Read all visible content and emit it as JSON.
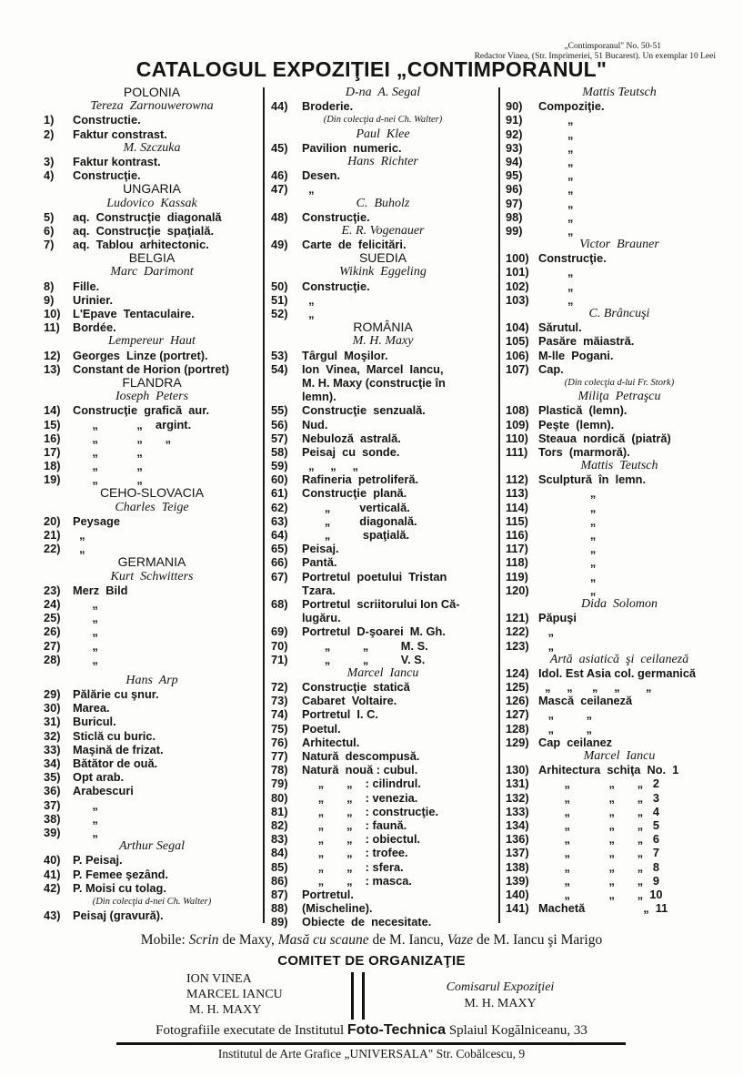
{
  "masthead": {
    "line1": "„Contimporanul\" No. 50-51",
    "line2": "Redactor Vinea, (Str. Imprimeriei, 51 Bucarest). Un exemplar 10 Leei"
  },
  "title": "CATALOGUL EXPOZIŢIEI „CONTIMPORANUL\"",
  "columns": [
    {
      "lines": [
        {
          "t": "h",
          "text": "POLONIA"
        },
        {
          "t": "a",
          "text": "Tereza  Zarnouwerowna"
        },
        {
          "t": "i",
          "num": "1)",
          "text": "Constructie."
        },
        {
          "t": "i",
          "num": "2)",
          "text": "Faktur constrast."
        },
        {
          "t": "a",
          "text": "M. Szczuka"
        },
        {
          "t": "i",
          "num": "3)",
          "text": "Faktur kontrast."
        },
        {
          "t": "i",
          "num": "4)",
          "text": "Construcţie."
        },
        {
          "t": "h",
          "text": "UNGARIA"
        },
        {
          "t": "a",
          "text": "Ludovico  Kassak"
        },
        {
          "t": "i",
          "num": "5)",
          "text": "aq.  Construcţie  diagonală"
        },
        {
          "t": "i",
          "num": "6)",
          "text": "aq.  Construcţie  spaţială."
        },
        {
          "t": "i",
          "num": "7)",
          "text": "aq.  Tablou  arhitectonic."
        },
        {
          "t": "h",
          "text": "BELGIA"
        },
        {
          "t": "a",
          "text": "Marc  Darimont"
        },
        {
          "t": "i",
          "num": "8)",
          "text": "Fille."
        },
        {
          "t": "i",
          "num": "9)",
          "text": "Urinier."
        },
        {
          "t": "i",
          "num": "10)",
          "text": "L'Epave  Tentaculaire."
        },
        {
          "t": "i",
          "num": "11)",
          "text": "Bordée."
        },
        {
          "t": "a",
          "text": "Lempereur  Haut"
        },
        {
          "t": "i",
          "num": "12)",
          "text": "Georges  Linze (portret)."
        },
        {
          "t": "i",
          "num": "13)",
          "text": "Constant de Horion (portret)"
        },
        {
          "t": "h",
          "text": "FLANDRA"
        },
        {
          "t": "a",
          "text": "Ioseph  Peters"
        },
        {
          "t": "i",
          "num": "14)",
          "text": "Construcţie  grafică  aur."
        },
        {
          "t": "i",
          "num": "15)",
          "text": "      „            „    argint."
        },
        {
          "t": "i",
          "num": "16)",
          "text": "      „            „       „"
        },
        {
          "t": "i",
          "num": "17)",
          "text": "      „            „"
        },
        {
          "t": "i",
          "num": "18)",
          "text": "      „            „"
        },
        {
          "t": "i",
          "num": "19)",
          "text": "      „            „"
        },
        {
          "t": "h",
          "text": "CEHO-SLOVACIA"
        },
        {
          "t": "a",
          "text": "Charles  Teige"
        },
        {
          "t": "i",
          "num": "20)",
          "text": "Peysage"
        },
        {
          "t": "i",
          "num": "21)",
          "text": "  „"
        },
        {
          "t": "i",
          "num": "22)",
          "text": "  „"
        },
        {
          "t": "h",
          "text": "GERMANIA"
        },
        {
          "t": "a",
          "text": "Kurt  Schwitters"
        },
        {
          "t": "i",
          "num": "23)",
          "text": "Merz  Bild"
        },
        {
          "t": "i",
          "num": "24)",
          "text": "      „"
        },
        {
          "t": "i",
          "num": "25)",
          "text": "      „"
        },
        {
          "t": "i",
          "num": "26)",
          "text": "      „"
        },
        {
          "t": "i",
          "num": "27)",
          "text": "      „"
        },
        {
          "t": "i",
          "num": "28)",
          "text": "      „"
        },
        {
          "t": "a",
          "text": "Hans  Arp"
        },
        {
          "t": "i",
          "num": "29)",
          "text": "Pălărie cu şnur."
        },
        {
          "t": "i",
          "num": "30)",
          "text": "Marea."
        },
        {
          "t": "i",
          "num": "31)",
          "text": "Buricul."
        },
        {
          "t": "i",
          "num": "32)",
          "text": "Sticlă cu buric."
        },
        {
          "t": "i",
          "num": "33)",
          "text": "Maşină de frizat."
        },
        {
          "t": "i",
          "num": "34)",
          "text": "Bătător de ouă."
        },
        {
          "t": "i",
          "num": "35)",
          "text": "Opt arab."
        },
        {
          "t": "i",
          "num": "36)",
          "text": "Arabescuri"
        },
        {
          "t": "i",
          "num": "37)",
          "text": "      „"
        },
        {
          "t": "i",
          "num": "38)",
          "text": "      „"
        },
        {
          "t": "i",
          "num": "39)",
          "text": "      „"
        },
        {
          "t": "a",
          "text": "Arthur Segal"
        },
        {
          "t": "i",
          "num": "40)",
          "text": "P. Peisaj."
        },
        {
          "t": "i",
          "num": "41)",
          "text": "P. Femee şezând."
        },
        {
          "t": "i",
          "num": "42)",
          "text": "P. Moisi cu tolag."
        },
        {
          "t": "n",
          "text": "(Din colecţia d-nei Ch. Walter)"
        },
        {
          "t": "i",
          "num": "43)",
          "text": "Peisaj (gravură)."
        }
      ]
    },
    {
      "lines": [
        {
          "t": "a",
          "text": "D-na  A. Segal"
        },
        {
          "t": "i",
          "num": "44)",
          "text": "Broderie."
        },
        {
          "t": "n",
          "text": "(Din colecţia d-nei Ch. Walter)"
        },
        {
          "t": "a",
          "text": "Paul  Klee"
        },
        {
          "t": "i",
          "num": "45)",
          "text": "Pavilion  numeric."
        },
        {
          "t": "a",
          "text": "Hans  Richter"
        },
        {
          "t": "i",
          "num": "46)",
          "text": "Desen."
        },
        {
          "t": "i",
          "num": "47)",
          "text": "  „"
        },
        {
          "t": "a",
          "text": "C.  Buholz"
        },
        {
          "t": "i",
          "num": "48)",
          "text": "Construcţie."
        },
        {
          "t": "a",
          "text": "E. R. Vogenauer"
        },
        {
          "t": "i",
          "num": "49)",
          "text": "Carte  de  felicitări."
        },
        {
          "t": "h",
          "text": "SUEDIA"
        },
        {
          "t": "a",
          "text": "Wikink  Eggeling"
        },
        {
          "t": "i",
          "num": "50)",
          "text": "Construcţie."
        },
        {
          "t": "i",
          "num": "51)",
          "text": "  „"
        },
        {
          "t": "i",
          "num": "52)",
          "text": "  „"
        },
        {
          "t": "h",
          "text": "ROMÂNIA"
        },
        {
          "t": "a",
          "text": "M. H. Maxy"
        },
        {
          "t": "i",
          "num": "53)",
          "text": "Târgul  Moşilor."
        },
        {
          "t": "i",
          "num": "54)",
          "text": "Ion  Vinea,  Marcel  Iancu,"
        },
        {
          "t": "c",
          "text": "M. H. Maxy (construcţie în"
        },
        {
          "t": "c",
          "text": "lemn)."
        },
        {
          "t": "i",
          "num": "55)",
          "text": "Construcţie  senzuală."
        },
        {
          "t": "i",
          "num": "56)",
          "text": "Nud."
        },
        {
          "t": "i",
          "num": "57)",
          "text": "Nebuloză  astrală."
        },
        {
          "t": "i",
          "num": "58)",
          "text": "Peisaj  cu  sonde."
        },
        {
          "t": "i",
          "num": "59)",
          "text": "  „     „     „"
        },
        {
          "t": "i",
          "num": "60)",
          "text": "Rafineria  petroliferă."
        },
        {
          "t": "i",
          "num": "61)",
          "text": "Construcţie  plană."
        },
        {
          "t": "i",
          "num": "62)",
          "text": "       „         verticală."
        },
        {
          "t": "i",
          "num": "63)",
          "text": "       „         diagonală."
        },
        {
          "t": "i",
          "num": "64)",
          "text": "       „          spaţială."
        },
        {
          "t": "i",
          "num": "65)",
          "text": "Peisaj."
        },
        {
          "t": "i",
          "num": "66)",
          "text": "Pantă."
        },
        {
          "t": "i",
          "num": "67)",
          "text": "Portretul  poetului  Tristan"
        },
        {
          "t": "c",
          "text": "Tzara."
        },
        {
          "t": "i",
          "num": "68)",
          "text": "Portretul  scriitorului Ion Că-"
        },
        {
          "t": "c",
          "text": "lugăru."
        },
        {
          "t": "i",
          "num": "69)",
          "text": "Portretul  D-şoarei  M. Gh."
        },
        {
          "t": "i",
          "num": "70)",
          "text": "       „          „          M. S."
        },
        {
          "t": "i",
          "num": "71)",
          "text": "       „          „          V. S."
        },
        {
          "t": "a",
          "text": "Marcel  Iancu"
        },
        {
          "t": "i",
          "num": "72)",
          "text": "Construcţie  statică"
        },
        {
          "t": "i",
          "num": "73)",
          "text": "Cabaret  Voltaire."
        },
        {
          "t": "i",
          "num": "74)",
          "text": "Portretul  I. C."
        },
        {
          "t": "i",
          "num": "75)",
          "text": "Poetul."
        },
        {
          "t": "i",
          "num": "76)",
          "text": "Arhitectul."
        },
        {
          "t": "i",
          "num": "77)",
          "text": "Natură  descompusă."
        },
        {
          "t": "i",
          "num": "78)",
          "text": "Natură  nouă : cubul."
        },
        {
          "t": "i",
          "num": "79)",
          "text": "     „       „    : cilindrul."
        },
        {
          "t": "i",
          "num": "80)",
          "text": "     „       „    : venezia."
        },
        {
          "t": "i",
          "num": "81)",
          "text": "     „       „    : construcţie."
        },
        {
          "t": "i",
          "num": "82)",
          "text": "     „       „    : faună."
        },
        {
          "t": "i",
          "num": "83)",
          "text": "     „       „    : obiectul."
        },
        {
          "t": "i",
          "num": "84)",
          "text": "     „       „    : trofee."
        },
        {
          "t": "i",
          "num": "85)",
          "text": "     „       „    : sfera."
        },
        {
          "t": "i",
          "num": "86)",
          "text": "     „       „    : masca."
        },
        {
          "t": "i",
          "num": "87)",
          "text": "Portretul."
        },
        {
          "t": "i",
          "num": "88)",
          "text": "(Mischeline)."
        },
        {
          "t": "i",
          "num": "89)",
          "text": "Obiecte  de  necesitate."
        }
      ]
    },
    {
      "lines": [
        {
          "t": "a",
          "text": "Mattis Teutsch"
        },
        {
          "t": "i",
          "num": "90)",
          "text": "Compoziţie."
        },
        {
          "t": "i",
          "num": "91)",
          "text": "         „"
        },
        {
          "t": "i",
          "num": "92)",
          "text": "         „"
        },
        {
          "t": "i",
          "num": "93)",
          "text": "         „"
        },
        {
          "t": "i",
          "num": "94)",
          "text": "         „"
        },
        {
          "t": "i",
          "num": "95)",
          "text": "         „"
        },
        {
          "t": "i",
          "num": "96)",
          "text": "         „"
        },
        {
          "t": "i",
          "num": "97)",
          "text": "         „"
        },
        {
          "t": "i",
          "num": "98)",
          "text": "         „"
        },
        {
          "t": "i",
          "num": "99)",
          "text": "         „"
        },
        {
          "t": "a",
          "text": "Victor  Brauner"
        },
        {
          "t": "i",
          "num": "100)",
          "text": "Construcţie."
        },
        {
          "t": "i",
          "num": "101)",
          "text": "         „"
        },
        {
          "t": "i",
          "num": "102)",
          "text": "         „"
        },
        {
          "t": "i",
          "num": "103)",
          "text": "         „"
        },
        {
          "t": "a",
          "text": "C. Brâncuşi"
        },
        {
          "t": "i",
          "num": "104)",
          "text": "Sărutul."
        },
        {
          "t": "i",
          "num": "105)",
          "text": "Pasăre  măiastră."
        },
        {
          "t": "i",
          "num": "106)",
          "text": "M-lle  Pogani."
        },
        {
          "t": "i",
          "num": "107)",
          "text": "Cap."
        },
        {
          "t": "n",
          "text": "(Din colecţia d-lui Fr. Stork)"
        },
        {
          "t": "a",
          "text": "Miliţa  Petraşcu"
        },
        {
          "t": "i",
          "num": "108)",
          "text": "Plastică  (lemn)."
        },
        {
          "t": "i",
          "num": "109)",
          "text": "Peşte  (lemn)."
        },
        {
          "t": "i",
          "num": "110)",
          "text": "Steaua  nordică  (piatră)"
        },
        {
          "t": "i",
          "num": "111)",
          "text": "Tors  (marmoră)."
        },
        {
          "t": "a",
          "text": "Mattis  Teutsch"
        },
        {
          "t": "i",
          "num": "112)",
          "text": "Sculptură  în  lemn."
        },
        {
          "t": "i",
          "num": "113)",
          "text": "                „"
        },
        {
          "t": "i",
          "num": "114)",
          "text": "                „"
        },
        {
          "t": "i",
          "num": "115)",
          "text": "                „"
        },
        {
          "t": "i",
          "num": "116)",
          "text": "                „"
        },
        {
          "t": "i",
          "num": "117)",
          "text": "                „"
        },
        {
          "t": "i",
          "num": "118)",
          "text": "                „"
        },
        {
          "t": "i",
          "num": "119)",
          "text": "                „"
        },
        {
          "t": "i",
          "num": "120)",
          "text": "                „"
        },
        {
          "t": "a",
          "text": "Dida  Solomon"
        },
        {
          "t": "i",
          "num": "121)",
          "text": "Păpuşi"
        },
        {
          "t": "i",
          "num": "122)",
          "text": "   „"
        },
        {
          "t": "i",
          "num": "123)",
          "text": "   „"
        },
        {
          "t": "a",
          "text": "Artă  asiatică  şi  ceilaneză"
        },
        {
          "t": "i",
          "num": "124)",
          "text": "Idol. Est Asia col. germanică"
        },
        {
          "t": "i",
          "num": "125)",
          "text": "  „     „      „     „        „"
        },
        {
          "t": "i",
          "num": "126)",
          "text": "Mască  ceilaneză"
        },
        {
          "t": "i",
          "num": "127)",
          "text": "   „          „"
        },
        {
          "t": "i",
          "num": "128)",
          "text": "   „          „"
        },
        {
          "t": "i",
          "num": "129)",
          "text": "Cap  ceilanez"
        },
        {
          "t": "a",
          "text": "Marcel  Iancu"
        },
        {
          "t": "i",
          "num": "130)",
          "text": "Arhitectura  schiţa  No.  1"
        },
        {
          "t": "i",
          "num": "131)",
          "text": "        „            „       „   2"
        },
        {
          "t": "i",
          "num": "132)",
          "text": "        „            „       „   3"
        },
        {
          "t": "i",
          "num": "133)",
          "text": "        „            „       „   4"
        },
        {
          "t": "i",
          "num": "134)",
          "text": "        „            „       „   5"
        },
        {
          "t": "i",
          "num": "136)",
          "text": "        „            „       „   6"
        },
        {
          "t": "i",
          "num": "137)",
          "text": "        „            „       „   7"
        },
        {
          "t": "i",
          "num": "138)",
          "text": "        „            „       „   8"
        },
        {
          "t": "i",
          "num": "139)",
          "text": "        „            „       „   9"
        },
        {
          "t": "i",
          "num": "140)",
          "text": "        „            „       „  10"
        },
        {
          "t": "i",
          "num": "141)",
          "text": "Machetă                  „  11"
        }
      ]
    }
  ],
  "mobile": {
    "label": "Mobile: ",
    "p1": "Scrin",
    "p2": " de Maxy, ",
    "p3": "Masă cu scaune",
    "p4": " de M. Iancu, ",
    "p5": "Vaze",
    "p6": " de M. Iancu şi Marigo"
  },
  "committee": {
    "title": "COMITET DE ORGANIZAŢIE",
    "members": [
      "ION VINEA",
      "MARCEL IANCU",
      "M. H. MAXY"
    ],
    "commissioner_title": "Comisarul Expoziţiei",
    "commissioner": "M. H. MAXY"
  },
  "footer": {
    "photo_pre": "Fotografiile executate de Institutul ",
    "photo_name": "Foto-Technica",
    "photo_post": " Splaiul Kogălniceanu, 33",
    "printer": "Institutul de Arte Grafice „UNIVERSALA\" Str. Cobălcescu, 9"
  }
}
